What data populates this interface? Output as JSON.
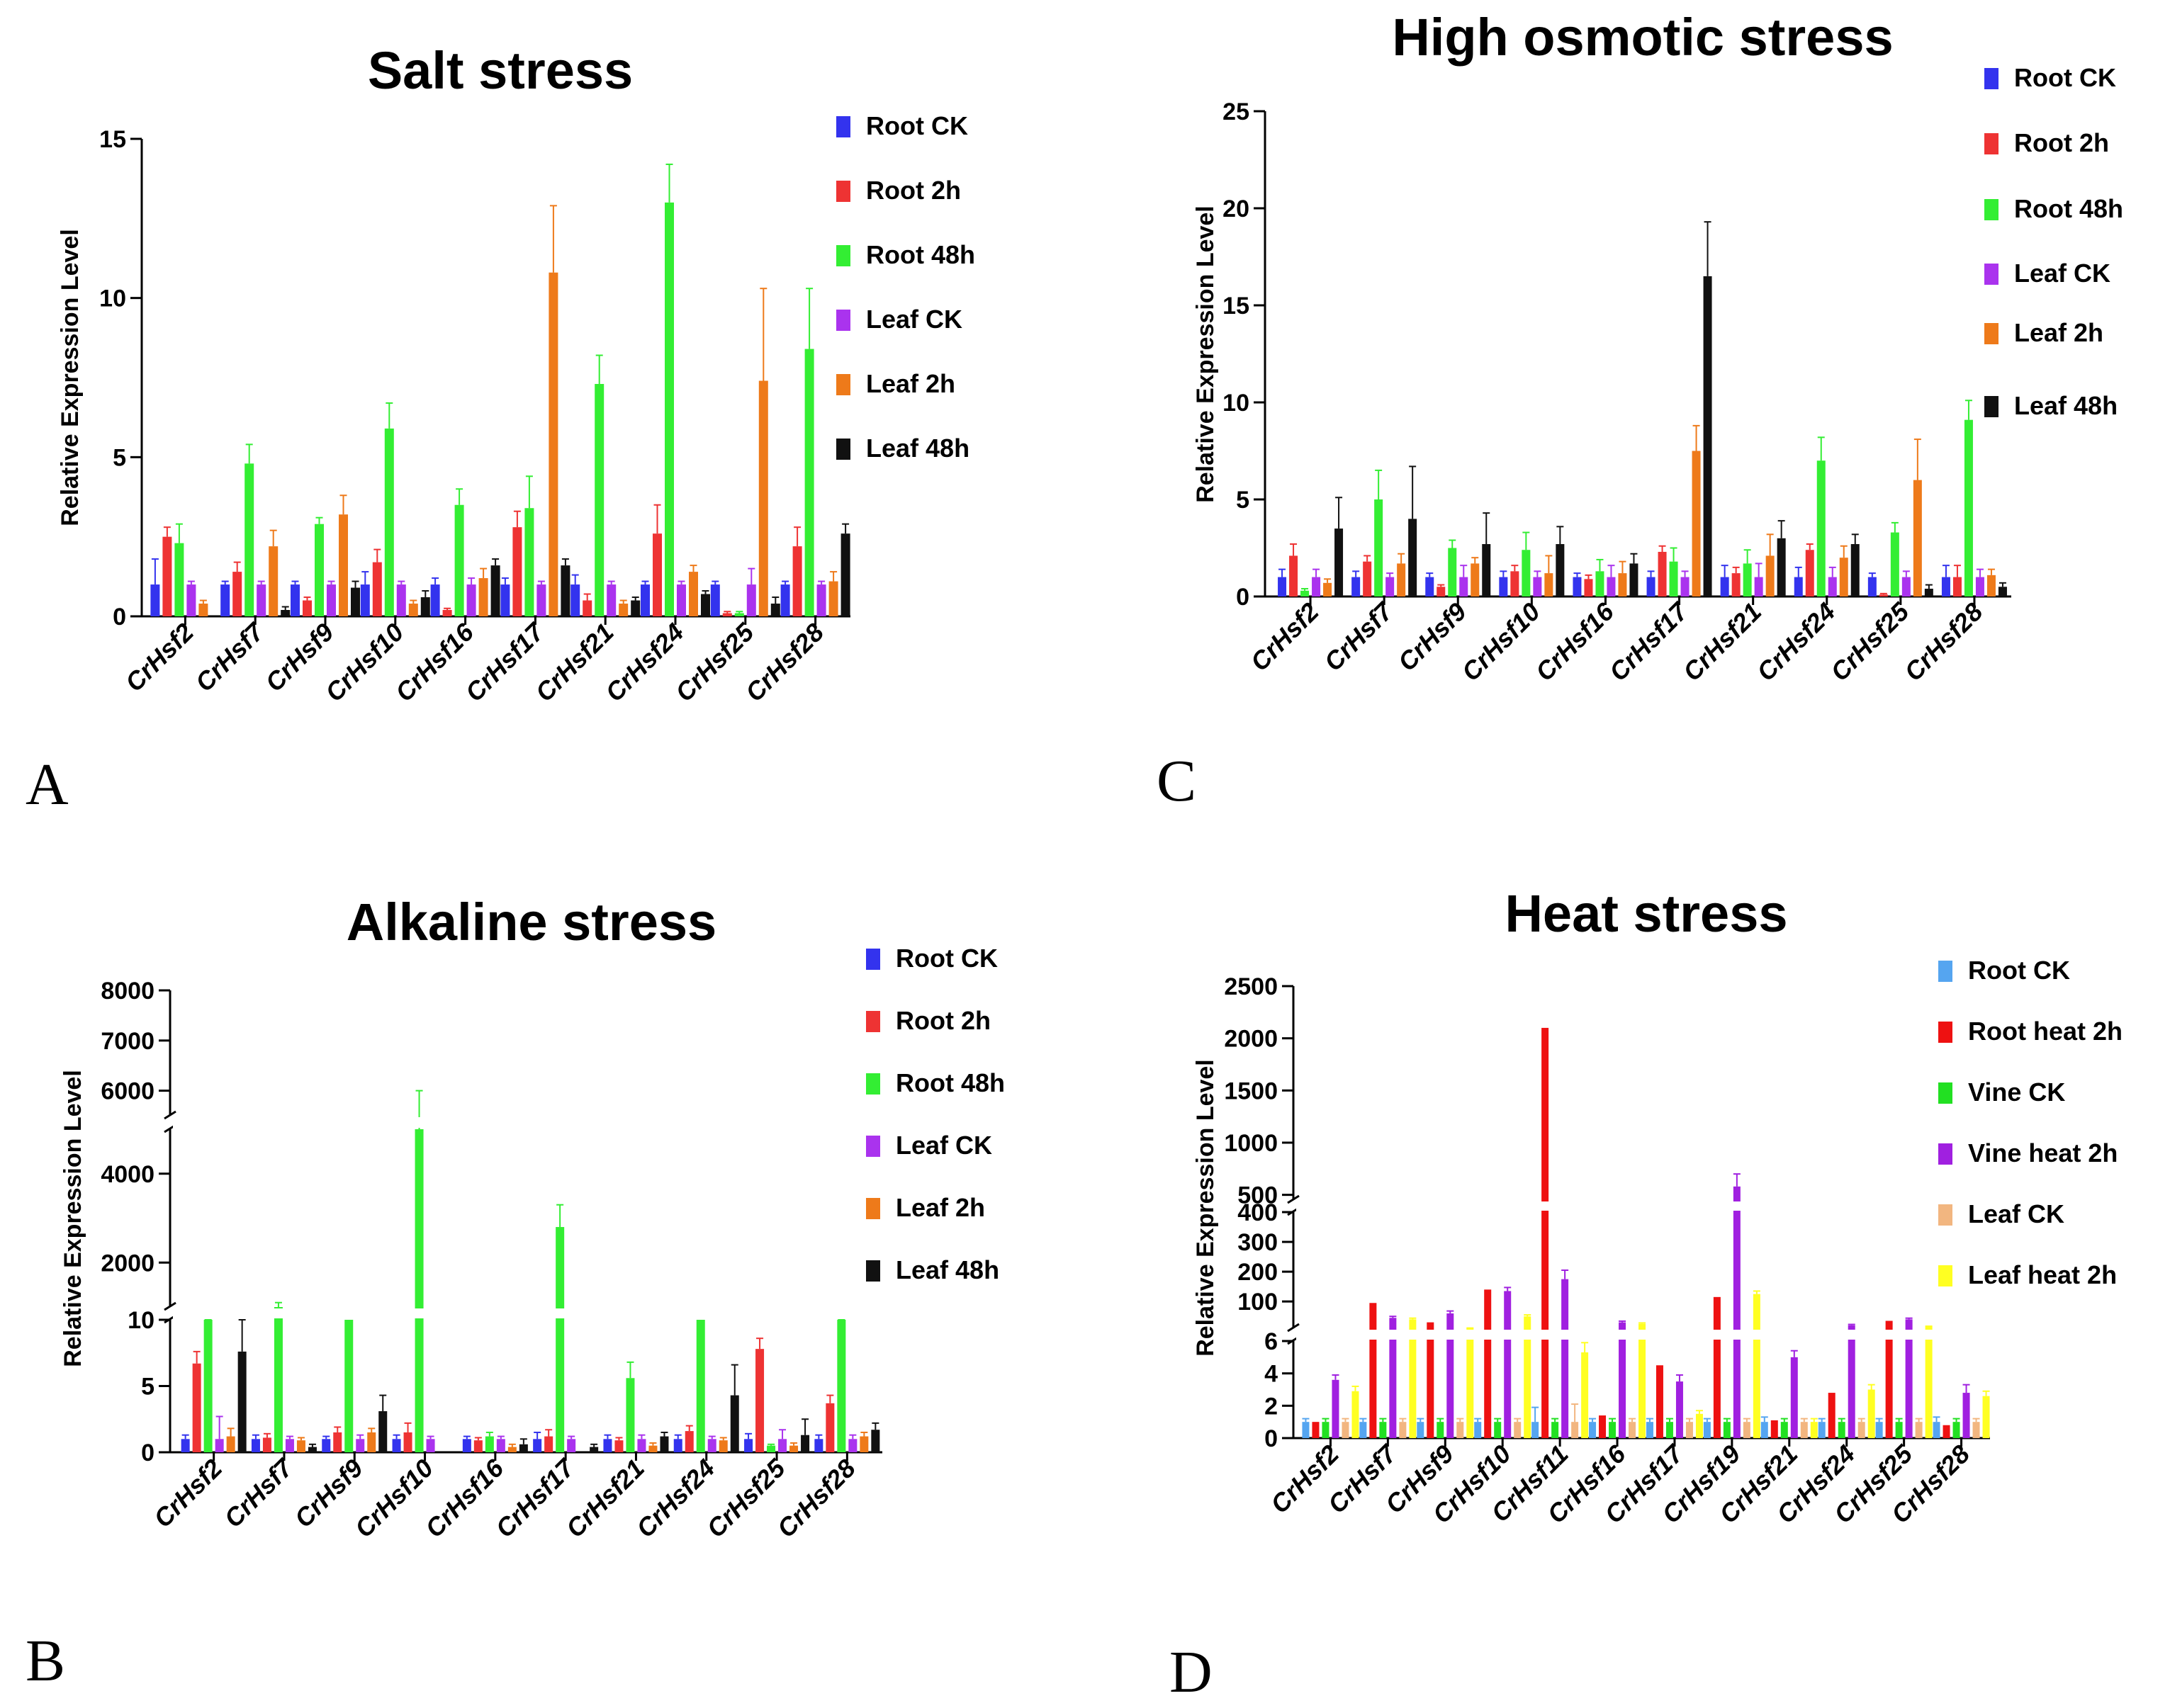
{
  "figure": {
    "panel_letters": [
      "A",
      "B",
      "C",
      "D"
    ]
  },
  "chart_data": [
    {
      "type": "bar",
      "panel": "A",
      "title": "Salt stress",
      "ylabel": "Relative Expression Level",
      "xlabel": "",
      "ylim": [
        0,
        15
      ],
      "yticks": [
        0,
        5,
        10,
        15
      ],
      "categories": [
        "CrHsf2",
        "CrHsf7",
        "CrHsf9",
        "CrHsf10",
        "CrHsf16",
        "CrHsf17",
        "CrHsf21",
        "CrHsf24",
        "CrHsf25",
        "CrHsf28"
      ],
      "series": [
        {
          "name": "Root CK",
          "color": "#3333ee",
          "values": [
            1.0,
            1.0,
            1.0,
            1.0,
            1.0,
            1.0,
            1.0,
            1.0,
            1.0,
            1.0
          ],
          "errors": [
            0.8,
            0.1,
            0.1,
            0.4,
            0.2,
            0.2,
            0.3,
            0.1,
            0.1,
            0.1
          ]
        },
        {
          "name": "Root 2h",
          "color": "#ee3333",
          "values": [
            2.5,
            1.4,
            0.5,
            1.7,
            0.2,
            2.8,
            0.5,
            2.6,
            0.1,
            2.2
          ],
          "errors": [
            0.3,
            0.3,
            0.1,
            0.4,
            0.05,
            0.5,
            0.2,
            0.9,
            0.05,
            0.6
          ]
        },
        {
          "name": "Root 48h",
          "color": "#33ee33",
          "values": [
            2.3,
            4.8,
            2.9,
            5.9,
            3.5,
            3.4,
            7.3,
            13.0,
            0.1,
            8.4
          ],
          "errors": [
            0.6,
            0.6,
            0.2,
            0.8,
            0.5,
            1.0,
            0.9,
            1.2,
            0.05,
            1.9
          ]
        },
        {
          "name": "Leaf CK",
          "color": "#aa33ee",
          "values": [
            1.0,
            1.0,
            1.0,
            1.0,
            1.0,
            1.0,
            1.0,
            1.0,
            1.0,
            1.0
          ],
          "errors": [
            0.1,
            0.1,
            0.1,
            0.1,
            0.2,
            0.1,
            0.1,
            0.1,
            0.5,
            0.1
          ]
        },
        {
          "name": "Leaf 2h",
          "color": "#ee7a1a",
          "values": [
            0.4,
            2.2,
            3.2,
            0.4,
            1.2,
            10.8,
            0.4,
            1.4,
            7.4,
            1.1
          ],
          "errors": [
            0.1,
            0.5,
            0.6,
            0.1,
            0.3,
            2.1,
            0.1,
            0.2,
            2.9,
            0.3
          ]
        },
        {
          "name": "Leaf 48h",
          "color": "#111111",
          "values": [
            0.0,
            0.2,
            0.9,
            0.6,
            1.6,
            1.6,
            0.5,
            0.7,
            0.4,
            2.6
          ],
          "errors": [
            0.0,
            0.1,
            0.2,
            0.2,
            0.2,
            0.2,
            0.1,
            0.1,
            0.2,
            0.3
          ]
        }
      ]
    },
    {
      "type": "bar",
      "panel": "B",
      "title": "Alkaline stress",
      "ylabel": "Relative Expression Level",
      "xlabel": "",
      "y_axis_broken": true,
      "y_segments": [
        {
          "range": [
            0,
            10
          ],
          "ticks": [
            0,
            5,
            10
          ]
        },
        {
          "range": [
            1000,
            5000
          ],
          "ticks": [
            2000,
            4000
          ]
        },
        {
          "range": [
            5500,
            8000
          ],
          "ticks": [
            6000,
            7000,
            8000
          ]
        }
      ],
      "categories": [
        "CrHsf2",
        "CrHsf7",
        "CrHsf9",
        "CrHsf10",
        "CrHsf16",
        "CrHsf17",
        "CrHsf21",
        "CrHsf24",
        "CrHsf25",
        "CrHsf28"
      ],
      "series": [
        {
          "name": "Root CK",
          "color": "#3333ee",
          "values": [
            1.0,
            1.0,
            1.0,
            1.0,
            1.0,
            1.0,
            1.0,
            1.0,
            1.0,
            1.0
          ],
          "errors": [
            0.3,
            0.3,
            0.2,
            0.3,
            0.2,
            0.5,
            0.3,
            0.3,
            0.4,
            0.3
          ]
        },
        {
          "name": "Root 2h",
          "color": "#ee3333",
          "values": [
            6.7,
            1.1,
            1.5,
            1.5,
            0.9,
            1.2,
            0.9,
            1.6,
            7.8,
            3.7
          ],
          "errors": [
            0.9,
            0.3,
            0.4,
            0.7,
            0.2,
            0.5,
            0.2,
            0.4,
            0.8,
            0.6
          ]
        },
        {
          "name": "Root 48h",
          "color": "#33ee33",
          "values": [
            900,
            1000,
            10,
            5000,
            1.2,
            2800,
            5.6,
            10,
            0.5,
            900
          ],
          "errors": [
            40,
            100,
            0,
            1000,
            0.3,
            500,
            1.2,
            0,
            0.1,
            50
          ]
        },
        {
          "name": "Leaf CK",
          "color": "#aa33ee",
          "values": [
            1.0,
            1.0,
            1.0,
            1.0,
            1.0,
            1.0,
            1.0,
            1.0,
            1.0,
            1.0
          ],
          "errors": [
            1.7,
            0.2,
            0.3,
            0.2,
            0.2,
            0.2,
            0.3,
            0.2,
            0.7,
            0.3
          ]
        },
        {
          "name": "Leaf 2h",
          "color": "#ee7a1a",
          "values": [
            1.2,
            0.9,
            1.5,
            0.0,
            0.4,
            0.0,
            0.5,
            0.9,
            0.5,
            1.2
          ],
          "errors": [
            0.6,
            0.2,
            0.3,
            0.0,
            0.2,
            0.0,
            0.2,
            0.2,
            0.2,
            0.3
          ]
        },
        {
          "name": "Leaf 48h",
          "color": "#111111",
          "values": [
            7.6,
            0.4,
            3.1,
            0.0,
            0.6,
            0.4,
            1.2,
            4.3,
            1.3,
            1.7
          ],
          "errors": [
            2.4,
            0.2,
            1.2,
            0.0,
            0.4,
            0.2,
            0.3,
            2.3,
            1.2,
            0.5
          ]
        }
      ]
    },
    {
      "type": "bar",
      "panel": "C",
      "title": "High osmotic stress",
      "ylabel": "Relative Expression Level",
      "xlabel": "",
      "ylim": [
        0,
        25
      ],
      "yticks": [
        0,
        5,
        10,
        15,
        20,
        25
      ],
      "categories": [
        "CrHsf2",
        "CrHsf7",
        "CrHsf9",
        "CrHsf10",
        "CrHsf16",
        "CrHsf17",
        "CrHsf21",
        "CrHsf24",
        "CrHsf25",
        "CrHsf28"
      ],
      "series": [
        {
          "name": "Root CK",
          "color": "#3333ee",
          "values": [
            1.0,
            1.0,
            1.0,
            1.0,
            1.0,
            1.0,
            1.0,
            1.0,
            1.0,
            1.0
          ],
          "errors": [
            0.4,
            0.3,
            0.2,
            0.3,
            0.2,
            0.3,
            0.6,
            0.5,
            0.2,
            0.6
          ]
        },
        {
          "name": "Root 2h",
          "color": "#ee3333",
          "values": [
            2.1,
            1.8,
            0.5,
            1.3,
            0.9,
            2.3,
            1.2,
            2.4,
            0.1,
            1.0
          ],
          "errors": [
            0.6,
            0.3,
            0.1,
            0.3,
            0.2,
            0.3,
            0.3,
            0.3,
            0.05,
            0.6
          ]
        },
        {
          "name": "Root 48h",
          "color": "#33ee33",
          "values": [
            0.3,
            5.0,
            2.5,
            2.4,
            1.3,
            1.8,
            1.7,
            7.0,
            3.3,
            9.1
          ],
          "errors": [
            0.1,
            1.5,
            0.4,
            0.9,
            0.6,
            0.7,
            0.7,
            1.2,
            0.5,
            1.0
          ]
        },
        {
          "name": "Leaf CK",
          "color": "#aa33ee",
          "values": [
            1.0,
            1.0,
            1.0,
            1.0,
            1.0,
            1.0,
            1.0,
            1.0,
            1.0,
            1.0
          ],
          "errors": [
            0.4,
            0.2,
            0.6,
            0.3,
            0.6,
            0.3,
            0.7,
            0.5,
            0.3,
            0.4
          ]
        },
        {
          "name": "Leaf 2h",
          "color": "#ee7a1a",
          "values": [
            0.7,
            1.7,
            1.7,
            1.2,
            1.2,
            7.5,
            2.1,
            2.0,
            6.0,
            1.1
          ],
          "errors": [
            0.2,
            0.5,
            0.3,
            0.9,
            0.6,
            1.3,
            1.1,
            0.6,
            2.1,
            0.3
          ]
        },
        {
          "name": "Leaf 48h",
          "color": "#111111",
          "values": [
            3.5,
            4.0,
            2.7,
            2.7,
            1.7,
            16.5,
            3.0,
            2.7,
            0.4,
            0.5
          ],
          "errors": [
            1.6,
            2.7,
            1.6,
            0.9,
            0.5,
            2.8,
            0.9,
            0.5,
            0.2,
            0.2
          ]
        }
      ]
    },
    {
      "type": "bar",
      "panel": "D",
      "title": "Heat stress",
      "ylabel": "Relative Expression Level",
      "xlabel": "",
      "y_axis_broken": true,
      "y_segments": [
        {
          "range": [
            0,
            6
          ],
          "ticks": [
            0,
            2,
            4,
            6
          ]
        },
        {
          "range": [
            10,
            400
          ],
          "ticks": [
            100,
            200,
            300,
            400
          ]
        },
        {
          "range": [
            450,
            2500
          ],
          "ticks": [
            500,
            1000,
            1500,
            2000,
            2500
          ]
        }
      ],
      "categories": [
        "CrHsf2",
        "CrHsf7",
        "CrHsf9",
        "CrHsf10",
        "CrHsf11",
        "CrHsf16",
        "CrHsf17",
        "CrHsf19",
        "CrHsf21",
        "CrHsf24",
        "CrHsf25",
        "CrHsf28"
      ],
      "series": [
        {
          "name": "Root CK",
          "color": "#55a5f0",
          "values": [
            1.0,
            1.0,
            1.0,
            1.0,
            1.0,
            1.0,
            1.0,
            1.0,
            1.0,
            1.0,
            1.0,
            1.0
          ],
          "errors": [
            0.2,
            0.2,
            0.2,
            0.2,
            0.9,
            0.2,
            0.2,
            0.2,
            0.3,
            0.2,
            0.2,
            0.3
          ]
        },
        {
          "name": "Root heat 2h",
          "color": "#ee1111",
          "values": [
            1.0,
            95,
            30,
            140,
            2100,
            1.4,
            4.5,
            115,
            1.1,
            2.8,
            35,
            0.8
          ]
        },
        {
          "name": "Vine CK",
          "color": "#22e022",
          "values": [
            1.0,
            1.0,
            1.0,
            1.0,
            1.0,
            1.0,
            1.0,
            1.0,
            1.0,
            1.0,
            1.0,
            1.0
          ],
          "errors": [
            0.2,
            0.2,
            0.2,
            0.2,
            0.2,
            0.2,
            0.2,
            0.2,
            0.2,
            0.2,
            0.2,
            0.2
          ]
        },
        {
          "name": "Vine heat 2h",
          "color": "#a020e0",
          "values": [
            3.6,
            45,
            60,
            135,
            175,
            30,
            3.5,
            580,
            5.0,
            20,
            40,
            2.8
          ],
          "errors": [
            0.3,
            5,
            8,
            12,
            30,
            4,
            0.4,
            120,
            0.4,
            3,
            4,
            0.5
          ]
        },
        {
          "name": "Leaf CK",
          "color": "#f2b680",
          "values": [
            1.0,
            1.0,
            1.0,
            1.0,
            1.0,
            1.0,
            1.0,
            1.0,
            1.0,
            1.0,
            1.0,
            1.0
          ],
          "errors": [
            0.2,
            0.2,
            0.2,
            0.2,
            1.1,
            0.2,
            0.2,
            0.2,
            0.2,
            0.2,
            0.2,
            0.2
          ]
        },
        {
          "name": "Leaf heat 2h",
          "color": "#ffff22",
          "values": [
            2.9,
            40,
            10,
            50,
            5.3,
            25,
            1.5,
            125,
            1.0,
            3.0,
            15,
            2.6
          ],
          "errors": [
            0.3,
            4,
            1,
            5,
            0.6,
            3,
            0.2,
            10,
            0.2,
            0.3,
            2,
            0.3
          ]
        }
      ]
    }
  ]
}
